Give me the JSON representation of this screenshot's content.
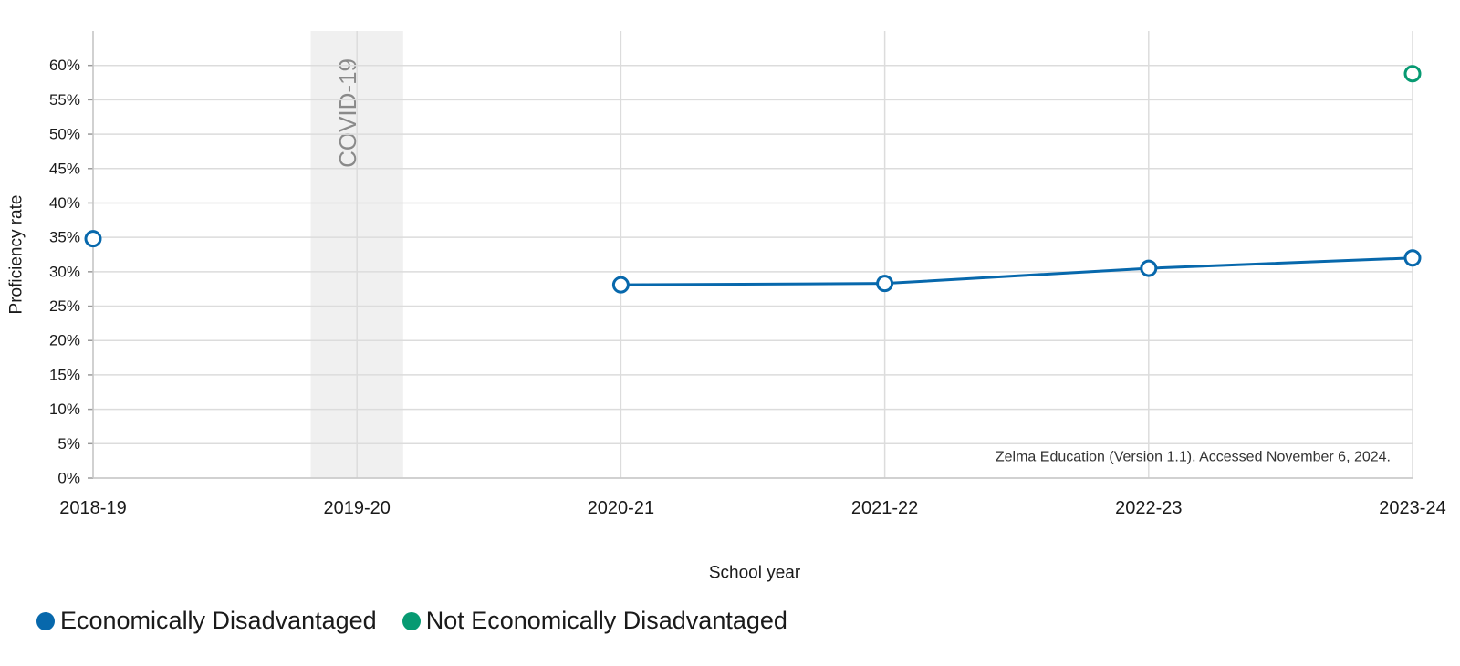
{
  "chart_data": {
    "type": "line",
    "categories": [
      "2018-19",
      "2019-20",
      "2020-21",
      "2021-22",
      "2022-23",
      "2023-24"
    ],
    "series": [
      {
        "name": "Economically Disadvantaged",
        "color": "#0768ac",
        "values": [
          34.8,
          null,
          28.1,
          28.3,
          30.5,
          32.0
        ]
      },
      {
        "name": "Not Economically Disadvantaged",
        "color": "#079a72",
        "values": [
          null,
          null,
          null,
          null,
          null,
          58.8
        ]
      }
    ],
    "xlabel": "School year",
    "ylabel": "Proficiency rate",
    "ylim": [
      0,
      65
    ],
    "yticks": [
      0,
      5,
      10,
      15,
      20,
      25,
      30,
      35,
      40,
      45,
      50,
      55,
      60
    ],
    "ytick_labels": [
      "0%",
      "5%",
      "10%",
      "15%",
      "20%",
      "25%",
      "30%",
      "35%",
      "40%",
      "45%",
      "50%",
      "55%",
      "60%"
    ],
    "grid": true,
    "legend_position": "bottom-left",
    "annotations": {
      "covid_band": {
        "label": "COVID-19",
        "category": "2019-20"
      },
      "source_note": "Zelma Education (Version 1.1). Accessed November 6, 2024."
    }
  }
}
